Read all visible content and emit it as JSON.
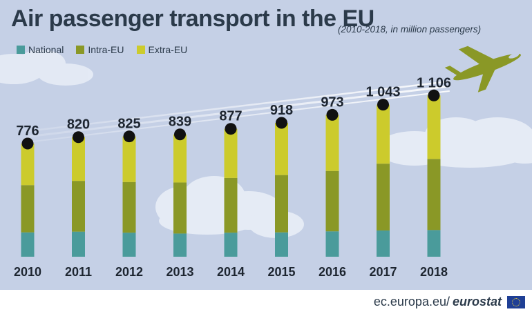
{
  "title": "Air passenger transport in the EU",
  "subtitle": "(2010-2018, in million passengers)",
  "legend": [
    {
      "name": "National",
      "color": "#4a9b9b"
    },
    {
      "name": "Intra-EU",
      "color": "#8a9826"
    },
    {
      "name": "Extra-EU",
      "color": "#cccb2c"
    }
  ],
  "footer": {
    "site": "ec.europa.eu/",
    "brand": "eurostat"
  },
  "chart_data": {
    "type": "bar",
    "stacked": true,
    "categories": [
      "2010",
      "2011",
      "2012",
      "2013",
      "2014",
      "2015",
      "2016",
      "2017",
      "2018"
    ],
    "series": [
      {
        "name": "National",
        "color": "#4a9b9b",
        "values": [
          167,
          172,
          165,
          159,
          165,
          167,
          174,
          180,
          183
        ]
      },
      {
        "name": "Intra-EU",
        "color": "#8a9826",
        "values": [
          324,
          348,
          347,
          350,
          375,
          393,
          414,
          458,
          488
        ]
      },
      {
        "name": "Extra-EU",
        "color": "#cccb2c",
        "values": [
          285,
          300,
          313,
          330,
          337,
          358,
          385,
          405,
          435
        ]
      }
    ],
    "totals": [
      "776",
      "820",
      "825",
      "839",
      "877",
      "918",
      "973",
      "1 043",
      "1 106"
    ],
    "total_values": [
      776,
      820,
      825,
      839,
      877,
      918,
      973,
      1043,
      1106
    ],
    "ylim": [
      0,
      1300
    ],
    "grid": false,
    "legend_position": "top-left"
  }
}
